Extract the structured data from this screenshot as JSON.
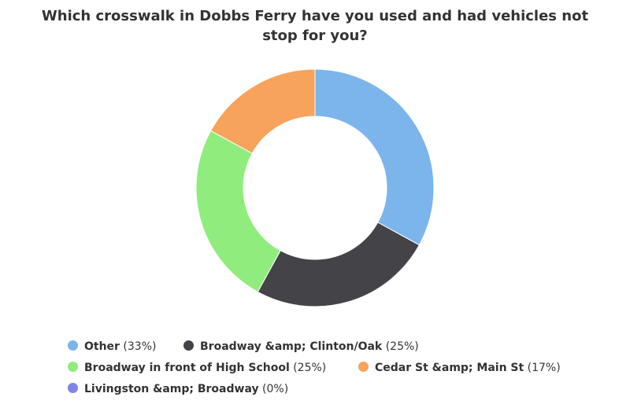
{
  "chart_data": {
    "type": "pie",
    "variant": "donut",
    "title": "Which crosswalk in Dobbs Ferry have you used and had vehicles not stop for you?",
    "slices": [
      {
        "label": "Other",
        "value": 33,
        "display": "(33%)",
        "color": "#7cb5ec"
      },
      {
        "label": "Broadway &amp; Clinton/Oak",
        "value": 25,
        "display": "(25%)",
        "color": "#434348"
      },
      {
        "label": "Broadway in front of High School",
        "value": 25,
        "display": "(25%)",
        "color": "#90ed7d"
      },
      {
        "label": "Cedar St &amp; Main St",
        "value": 17,
        "display": "(17%)",
        "color": "#f7a35c"
      },
      {
        "label": "Livingston &amp; Broadway",
        "value": 0,
        "display": "(0%)",
        "color": "#8085e9"
      }
    ],
    "legend_position": "bottom"
  }
}
